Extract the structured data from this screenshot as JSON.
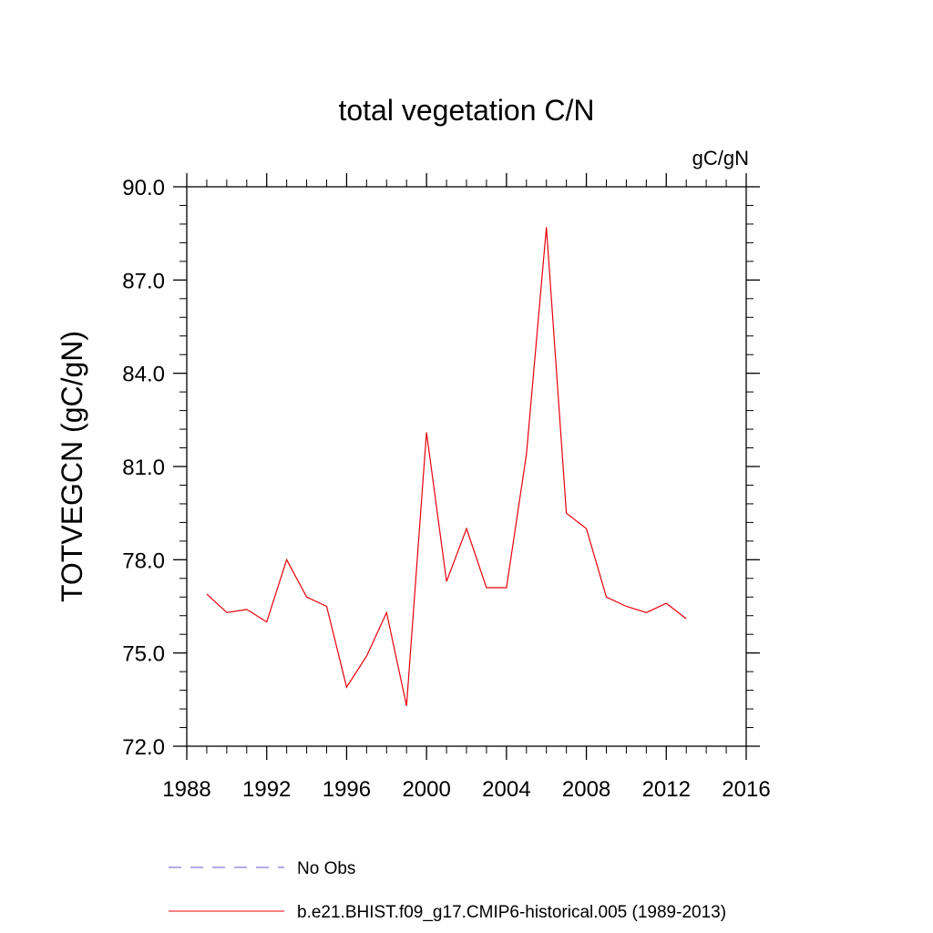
{
  "chart_data": {
    "type": "line",
    "title": "total vegetation C/N",
    "units": "gC/gN",
    "xlabel": "",
    "ylabel": "TOTVEGCN  (gC/gN)",
    "xlim": [
      1988,
      2016
    ],
    "ylim": [
      72.0,
      90.0
    ],
    "x_ticks": [
      1988,
      1992,
      1996,
      2000,
      2004,
      2008,
      2012,
      2016
    ],
    "x_tick_labels": [
      "1988",
      "1992",
      "1996",
      "2000",
      "2004",
      "2008",
      "2012",
      "2016"
    ],
    "y_ticks": [
      72.0,
      75.0,
      78.0,
      81.0,
      84.0,
      87.0,
      90.0
    ],
    "y_tick_labels": [
      "72.0",
      "75.0",
      "78.0",
      "81.0",
      "84.0",
      "87.0",
      "90.0"
    ],
    "grid": false,
    "legend_position": "bottom",
    "series": [
      {
        "name": "No Obs",
        "color": "#6a5acd",
        "style": "dashed",
        "x": [],
        "values": []
      },
      {
        "name": "b.e21.BHIST.f09_g17.CMIP6-historical.005 (1989-2013)",
        "color": "#e8000b",
        "style": "solid",
        "x": [
          1989,
          1990,
          1991,
          1992,
          1993,
          1994,
          1995,
          1996,
          1997,
          1998,
          1999,
          2000,
          2001,
          2002,
          2003,
          2004,
          2005,
          2006,
          2007,
          2008,
          2009,
          2010,
          2011,
          2012,
          2013
        ],
        "values": [
          76.9,
          76.3,
          76.4,
          76.0,
          78.0,
          76.8,
          76.5,
          73.9,
          74.9,
          76.3,
          73.3,
          82.1,
          77.3,
          79.0,
          77.1,
          77.1,
          81.4,
          88.7,
          79.5,
          79.0,
          76.8,
          76.5,
          76.3,
          76.6,
          76.1
        ]
      }
    ]
  }
}
